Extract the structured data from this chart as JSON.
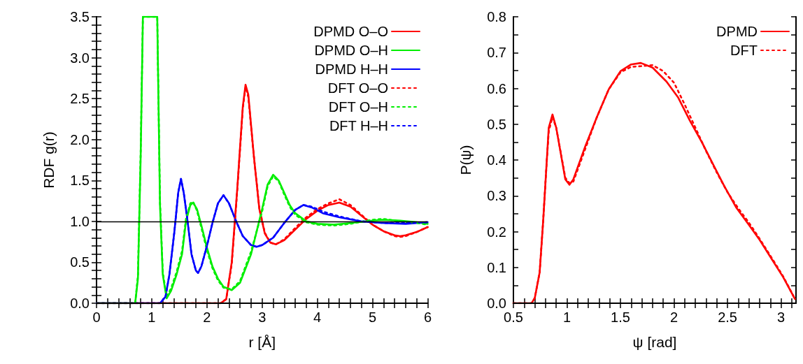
{
  "chart_data": [
    {
      "type": "line",
      "xlabel": "r [Å]",
      "ylabel": "RDF g(r)",
      "xlim": [
        0,
        6
      ],
      "ylim": [
        0,
        3.5
      ],
      "xticks": [
        0,
        {
          "value": 0.2,
          "label": null
        },
        {
          "value": 0.4,
          "label": null
        },
        {
          "value": 0.6,
          "label": null
        },
        {
          "value": 0.8,
          "label": null
        },
        1,
        {
          "value": 1.2,
          "label": null
        },
        {
          "value": 1.4,
          "label": null
        },
        {
          "value": 1.6,
          "label": null
        },
        {
          "value": 1.8,
          "label": null
        },
        2,
        {
          "value": 2.2,
          "label": null
        },
        {
          "value": 2.4,
          "label": null
        },
        {
          "value": 2.6,
          "label": null
        },
        {
          "value": 2.8,
          "label": null
        },
        3,
        {
          "value": 3.2,
          "label": null
        },
        {
          "value": 3.4,
          "label": null
        },
        {
          "value": 3.6,
          "label": null
        },
        {
          "value": 3.8,
          "label": null
        },
        4,
        {
          "value": 4.2,
          "label": null
        },
        {
          "value": 4.4,
          "label": null
        },
        {
          "value": 4.6,
          "label": null
        },
        {
          "value": 4.8,
          "label": null
        },
        5,
        {
          "value": 5.2,
          "label": null
        },
        {
          "value": 5.4,
          "label": null
        },
        {
          "value": 5.6,
          "label": null
        },
        {
          "value": 5.8,
          "label": null
        },
        6
      ],
      "yticks": [
        {
          "value": 0,
          "label": "0.0"
        },
        {
          "value": 0.1,
          "label": null
        },
        {
          "value": 0.2,
          "label": null
        },
        {
          "value": 0.3,
          "label": null
        },
        {
          "value": 0.4,
          "label": null
        },
        0.5,
        {
          "value": 0.6,
          "label": null
        },
        {
          "value": 0.7,
          "label": null
        },
        {
          "value": 0.8,
          "label": null
        },
        {
          "value": 0.9,
          "label": null
        },
        {
          "value": 1,
          "label": "1.0"
        },
        {
          "value": 1.1,
          "label": null
        },
        {
          "value": 1.2,
          "label": null
        },
        {
          "value": 1.3,
          "label": null
        },
        {
          "value": 1.4,
          "label": null
        },
        1.5,
        {
          "value": 1.6,
          "label": null
        },
        {
          "value": 1.7,
          "label": null
        },
        {
          "value": 1.8,
          "label": null
        },
        {
          "value": 1.9,
          "label": null
        },
        {
          "value": 2,
          "label": "2.0"
        },
        {
          "value": 2.1,
          "label": null
        },
        {
          "value": 2.2,
          "label": null
        },
        {
          "value": 2.3,
          "label": null
        },
        {
          "value": 2.4,
          "label": null
        },
        2.5,
        {
          "value": 2.6,
          "label": null
        },
        {
          "value": 2.7,
          "label": null
        },
        {
          "value": 2.8,
          "label": null
        },
        {
          "value": 2.9,
          "label": null
        },
        {
          "value": 3,
          "label": "3.0"
        },
        {
          "value": 3.1,
          "label": null
        },
        {
          "value": 3.2,
          "label": null
        },
        {
          "value": 3.3,
          "label": null
        },
        {
          "value": 3.4,
          "label": null
        },
        3.5
      ],
      "grid": false,
      "legend": "top right",
      "marker": "none",
      "ref_lines": [
        {
          "axis": "y",
          "value": 1,
          "color": "#000000",
          "line_style": "solid"
        }
      ],
      "series": [
        {
          "name": "DPMD O–O",
          "color": "#ff0000",
          "line_style": "solid",
          "x": [
            0,
            2.25,
            2.35,
            2.45,
            2.55,
            2.65,
            2.7,
            2.75,
            2.85,
            2.95,
            3.05,
            3.15,
            3.25,
            3.4,
            3.6,
            3.8,
            4.0,
            4.2,
            4.4,
            4.6,
            4.8,
            5.0,
            5.2,
            5.4,
            5.5,
            5.6,
            5.8,
            6.0
          ],
          "values": [
            0,
            0,
            0.05,
            0.5,
            1.4,
            2.4,
            2.67,
            2.55,
            1.8,
            1.15,
            0.85,
            0.74,
            0.72,
            0.77,
            0.9,
            1.03,
            1.13,
            1.2,
            1.23,
            1.18,
            1.07,
            0.96,
            0.88,
            0.83,
            0.82,
            0.83,
            0.87,
            0.93
          ]
        },
        {
          "name": "DPMD O–H",
          "color": "#00ee00",
          "line_style": "solid",
          "x": [
            0,
            0.7,
            0.75,
            0.8,
            0.84,
            1.1,
            1.15,
            1.2,
            1.27,
            1.35,
            1.45,
            1.55,
            1.62,
            1.7,
            1.75,
            1.82,
            1.9,
            2.0,
            2.1,
            2.2,
            2.3,
            2.45,
            2.6,
            2.8,
            3.0,
            3.1,
            3.2,
            3.3,
            3.4,
            3.5,
            3.6,
            3.8,
            4.0,
            4.3,
            4.6,
            5.0,
            5.2,
            5.5,
            5.8,
            6.0
          ],
          "values": [
            0,
            0,
            0.3,
            1.8,
            3.5,
            3.5,
            1.2,
            0.35,
            0.06,
            0.15,
            0.35,
            0.6,
            1.0,
            1.2,
            1.23,
            1.15,
            0.95,
            0.68,
            0.45,
            0.3,
            0.2,
            0.16,
            0.25,
            0.6,
            1.15,
            1.45,
            1.57,
            1.5,
            1.35,
            1.2,
            1.1,
            1.0,
            0.97,
            0.96,
            0.98,
            1.01,
            1.02,
            1.01,
            0.99,
            0.97
          ]
        },
        {
          "name": "DPMD H–H",
          "color": "#0000ff",
          "line_style": "solid",
          "x": [
            0,
            1.15,
            1.25,
            1.32,
            1.41,
            1.48,
            1.53,
            1.58,
            1.65,
            1.72,
            1.8,
            1.84,
            1.9,
            2.0,
            2.1,
            2.2,
            2.3,
            2.4,
            2.53,
            2.65,
            2.8,
            2.9,
            3.0,
            3.2,
            3.4,
            3.6,
            3.75,
            3.9,
            4.1,
            4.4,
            4.8,
            5.2,
            5.6,
            6.0
          ],
          "values": [
            0,
            0,
            0.08,
            0.35,
            0.87,
            1.35,
            1.52,
            1.35,
            1.0,
            0.6,
            0.4,
            0.37,
            0.45,
            0.7,
            0.98,
            1.22,
            1.32,
            1.22,
            1.0,
            0.82,
            0.71,
            0.69,
            0.71,
            0.8,
            0.98,
            1.14,
            1.2,
            1.17,
            1.1,
            1.05,
            1.0,
            0.98,
            0.97,
            0.99
          ]
        },
        {
          "name": "DFT O–O",
          "color": "#ff0000",
          "line_style": "dotted",
          "x": [
            0,
            2.25,
            2.35,
            2.45,
            2.55,
            2.65,
            2.7,
            2.75,
            2.85,
            2.95,
            3.05,
            3.15,
            3.25,
            3.4,
            3.6,
            3.8,
            4.0,
            4.2,
            4.4,
            4.6,
            4.8,
            5.0,
            5.2,
            5.4,
            5.5,
            5.6,
            5.8,
            6.0
          ],
          "values": [
            0,
            0,
            0.05,
            0.48,
            1.38,
            2.38,
            2.64,
            2.52,
            1.8,
            1.16,
            0.86,
            0.74,
            0.72,
            0.78,
            0.92,
            1.05,
            1.15,
            1.22,
            1.27,
            1.2,
            1.08,
            0.96,
            0.88,
            0.82,
            0.81,
            0.82,
            0.87,
            0.93
          ]
        },
        {
          "name": "DFT O–H",
          "color": "#00ee00",
          "line_style": "dotted",
          "x": [
            0,
            0.7,
            0.75,
            0.8,
            0.84,
            1.1,
            1.15,
            1.2,
            1.27,
            1.35,
            1.45,
            1.55,
            1.62,
            1.7,
            1.75,
            1.82,
            1.9,
            2.0,
            2.1,
            2.2,
            2.3,
            2.45,
            2.6,
            2.8,
            3.0,
            3.1,
            3.2,
            3.3,
            3.4,
            3.5,
            3.6,
            3.8,
            4.0,
            4.3,
            4.6,
            5.0,
            5.2,
            5.5,
            5.8,
            6.0
          ],
          "values": [
            0,
            0,
            0.34,
            1.85,
            3.5,
            3.5,
            1.25,
            0.38,
            0.08,
            0.18,
            0.38,
            0.64,
            1.03,
            1.22,
            1.24,
            1.13,
            0.92,
            0.65,
            0.43,
            0.28,
            0.19,
            0.17,
            0.27,
            0.63,
            1.12,
            1.43,
            1.55,
            1.49,
            1.33,
            1.18,
            1.08,
            0.99,
            0.96,
            0.95,
            0.97,
            1.02,
            1.03,
            1.0,
            0.98,
            0.96
          ]
        },
        {
          "name": "DFT H–H",
          "color": "#0000ff",
          "line_style": "dotted",
          "x": [
            0,
            1.15,
            1.25,
            1.32,
            1.41,
            1.48,
            1.53,
            1.58,
            1.65,
            1.72,
            1.8,
            1.84,
            1.9,
            2.0,
            2.1,
            2.2,
            2.3,
            2.4,
            2.53,
            2.65,
            2.8,
            2.9,
            3.0,
            3.2,
            3.4,
            3.6,
            3.75,
            3.9,
            4.1,
            4.4,
            4.8,
            5.2,
            5.6,
            6.0
          ],
          "values": [
            0,
            0,
            0.08,
            0.35,
            0.87,
            1.35,
            1.52,
            1.35,
            1.0,
            0.6,
            0.4,
            0.37,
            0.45,
            0.7,
            0.98,
            1.22,
            1.32,
            1.22,
            1.0,
            0.82,
            0.71,
            0.69,
            0.71,
            0.8,
            0.98,
            1.14,
            1.2,
            1.18,
            1.12,
            1.06,
            1.0,
            0.98,
            0.98,
            0.99
          ]
        }
      ]
    },
    {
      "type": "line",
      "xlabel": "ψ [rad]",
      "ylabel": "P(ψ)",
      "xlim": [
        0.5,
        3.14
      ],
      "ylim": [
        0,
        0.8
      ],
      "xticks": [
        0.5,
        {
          "value": 0.6,
          "label": null
        },
        {
          "value": 0.7,
          "label": null
        },
        {
          "value": 0.8,
          "label": null
        },
        {
          "value": 0.9,
          "label": null
        },
        1,
        {
          "value": 1.1,
          "label": null
        },
        {
          "value": 1.2,
          "label": null
        },
        {
          "value": 1.3,
          "label": null
        },
        {
          "value": 1.4,
          "label": null
        },
        1.5,
        {
          "value": 1.6,
          "label": null
        },
        {
          "value": 1.7,
          "label": null
        },
        {
          "value": 1.8,
          "label": null
        },
        {
          "value": 1.9,
          "label": null
        },
        2,
        {
          "value": 2.1,
          "label": null
        },
        {
          "value": 2.2,
          "label": null
        },
        {
          "value": 2.3,
          "label": null
        },
        {
          "value": 2.4,
          "label": null
        },
        2.5,
        {
          "value": 2.6,
          "label": null
        },
        {
          "value": 2.7,
          "label": null
        },
        {
          "value": 2.8,
          "label": null
        },
        {
          "value": 2.9,
          "label": null
        },
        3,
        {
          "value": 3.1,
          "label": null
        }
      ],
      "yticks": [
        {
          "value": 0,
          "label": "0.0"
        },
        {
          "value": 0.05,
          "label": null
        },
        0.1,
        {
          "value": 0.15,
          "label": null
        },
        0.2,
        {
          "value": 0.25,
          "label": null
        },
        0.3,
        {
          "value": 0.35,
          "label": null
        },
        0.4,
        {
          "value": 0.45,
          "label": null
        },
        0.5,
        {
          "value": 0.55,
          "label": null
        },
        0.6,
        {
          "value": 0.65,
          "label": null
        },
        0.7,
        {
          "value": 0.75,
          "label": null
        },
        0.8
      ],
      "grid": false,
      "legend": "top right",
      "marker": "none",
      "series": [
        {
          "name": "DPMD",
          "color": "#ff0000",
          "line_style": "solid",
          "x": [
            0.5,
            0.67,
            0.7,
            0.745,
            0.778,
            0.81,
            0.83,
            0.865,
            0.9,
            0.985,
            1.024,
            1.06,
            1.17,
            1.28,
            1.39,
            1.5,
            1.6,
            1.69,
            1.8,
            1.93,
            2.04,
            2.15,
            2.26,
            2.37,
            2.47,
            2.58,
            2.69,
            2.8,
            2.91,
            3.02,
            3.13
          ],
          "values": [
            0,
            0,
            0.015,
            0.086,
            0.23,
            0.39,
            0.49,
            0.527,
            0.49,
            0.346,
            0.331,
            0.346,
            0.437,
            0.52,
            0.597,
            0.648,
            0.667,
            0.671,
            0.658,
            0.619,
            0.574,
            0.509,
            0.45,
            0.385,
            0.327,
            0.268,
            0.223,
            0.177,
            0.125,
            0.073,
            0.012
          ]
        },
        {
          "name": "DFT",
          "color": "#ff0000",
          "line_style": "dotted",
          "x": [
            0.5,
            0.67,
            0.7,
            0.745,
            0.778,
            0.81,
            0.83,
            0.865,
            0.9,
            0.985,
            1.024,
            1.06,
            1.17,
            1.28,
            1.39,
            1.5,
            1.6,
            1.69,
            1.8,
            1.9,
            2.0,
            2.1,
            2.2,
            2.3,
            2.4,
            2.5,
            2.6,
            2.7,
            2.8,
            2.91,
            3.02,
            3.13
          ],
          "values": [
            0,
            0,
            0.015,
            0.086,
            0.23,
            0.39,
            0.48,
            0.52,
            0.49,
            0.35,
            0.335,
            0.34,
            0.43,
            0.52,
            0.597,
            0.645,
            0.66,
            0.662,
            0.665,
            0.648,
            0.616,
            0.555,
            0.49,
            0.425,
            0.365,
            0.31,
            0.265,
            0.225,
            0.18,
            0.128,
            0.075,
            0.012
          ]
        }
      ]
    }
  ]
}
